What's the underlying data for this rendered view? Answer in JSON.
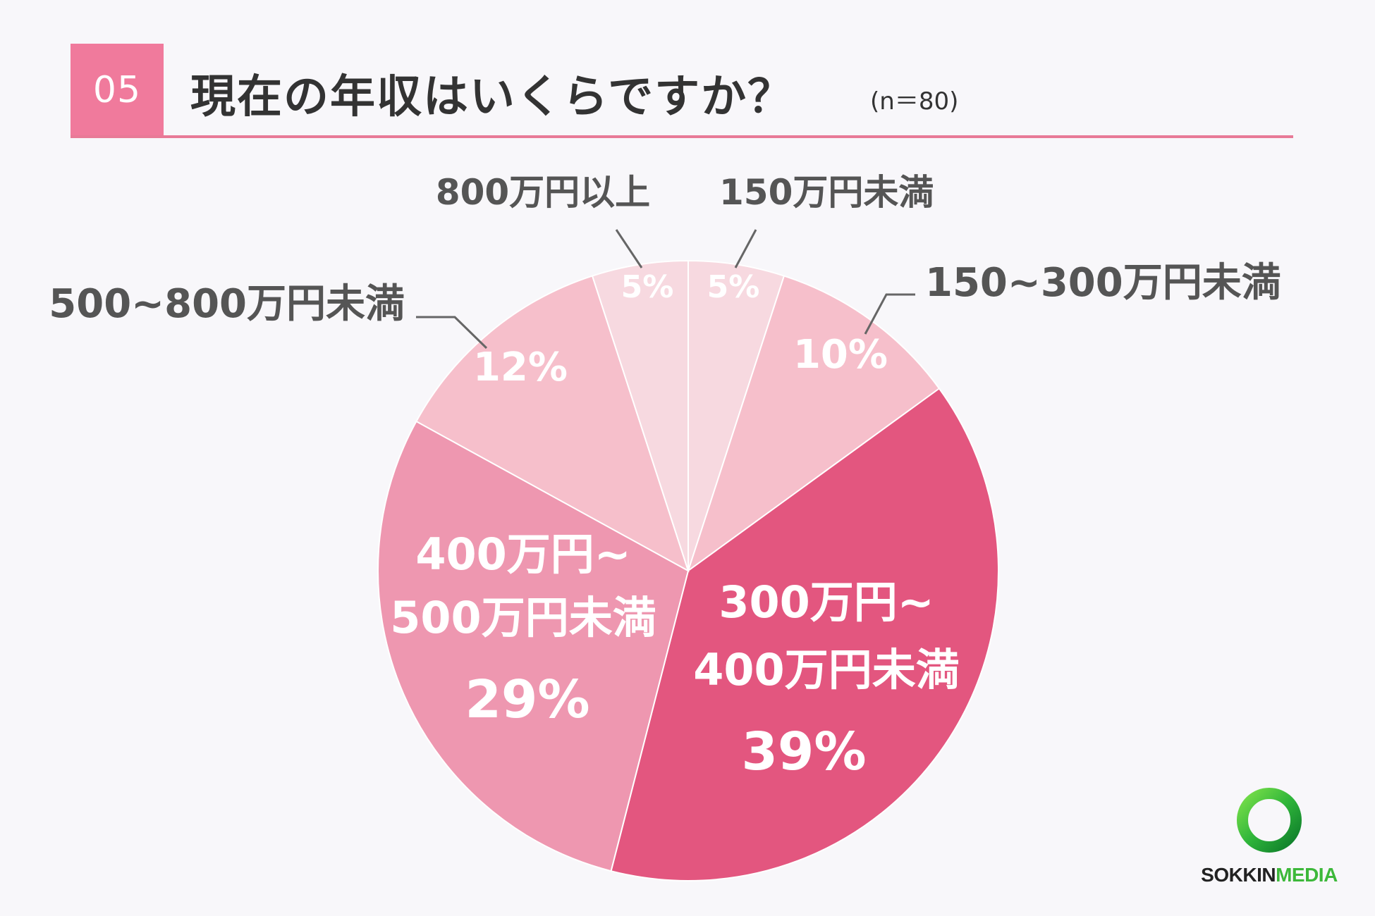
{
  "header": {
    "number": "05",
    "title": "現在の年収はいくらですか？",
    "sample": "(n＝80)"
  },
  "chart_data": {
    "type": "pie",
    "start_angle_deg": 0,
    "direction": "clockwise",
    "slices": [
      {
        "label": "150万円未満",
        "value": 5,
        "value_label": "5%",
        "color": "#f7d9e0",
        "label_position": "outside"
      },
      {
        "label": "150~300万円未満",
        "value": 10,
        "value_label": "10%",
        "color": "#f6bfcb",
        "label_position": "outside"
      },
      {
        "label": "300万円~\n400万円未満",
        "value": 39,
        "value_label": "39%",
        "color": "#e3567f",
        "label_position": "inside"
      },
      {
        "label": "400万円~\n500万円未満",
        "value": 29,
        "value_label": "29%",
        "color": "#ee97b0",
        "label_position": "inside"
      },
      {
        "label": "500~800万円未満",
        "value": 12,
        "value_label": "12%",
        "color": "#f6bfcb",
        "label_position": "outside"
      },
      {
        "label": "800万円以上",
        "value": 5,
        "value_label": "5%",
        "color": "#f7d9e0",
        "label_position": "outside"
      }
    ]
  },
  "logo": {
    "brand_part1": "SOKKIN",
    "brand_part2": "MEDIA"
  }
}
